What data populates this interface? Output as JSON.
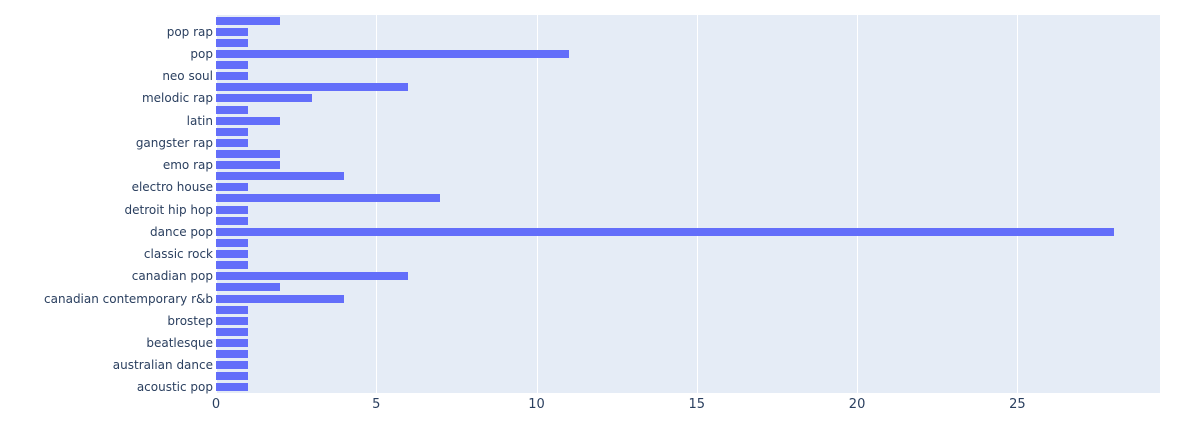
{
  "chart_data": {
    "type": "bar",
    "orientation": "horizontal",
    "title": "",
    "xlabel": "",
    "ylabel": "",
    "legend": false,
    "grid": true,
    "x_ticks": [
      0,
      5,
      10,
      15,
      20,
      25
    ],
    "x_range": [
      0,
      29.45
    ],
    "note": "34 horizontal bars; y tick labels shown only for every second category",
    "rows_top_to_bottom": [
      {
        "label": "",
        "value": 2
      },
      {
        "label": "pop rap",
        "value": 1
      },
      {
        "label": "",
        "value": 1
      },
      {
        "label": "pop",
        "value": 11
      },
      {
        "label": "",
        "value": 1
      },
      {
        "label": "neo soul",
        "value": 1
      },
      {
        "label": "",
        "value": 6
      },
      {
        "label": "melodic rap",
        "value": 3
      },
      {
        "label": "",
        "value": 1
      },
      {
        "label": "latin",
        "value": 2
      },
      {
        "label": "",
        "value": 1
      },
      {
        "label": "gangster rap",
        "value": 1
      },
      {
        "label": "",
        "value": 2
      },
      {
        "label": "emo rap",
        "value": 2
      },
      {
        "label": "",
        "value": 4
      },
      {
        "label": "electro house",
        "value": 1
      },
      {
        "label": "",
        "value": 7
      },
      {
        "label": "detroit hip hop",
        "value": 1
      },
      {
        "label": "",
        "value": 1
      },
      {
        "label": "dance pop",
        "value": 28
      },
      {
        "label": "",
        "value": 1
      },
      {
        "label": "classic rock",
        "value": 1
      },
      {
        "label": "",
        "value": 1
      },
      {
        "label": "canadian pop",
        "value": 6
      },
      {
        "label": "",
        "value": 2
      },
      {
        "label": "canadian contemporary r&b",
        "value": 4
      },
      {
        "label": "",
        "value": 1
      },
      {
        "label": "brostep",
        "value": 1
      },
      {
        "label": "",
        "value": 1
      },
      {
        "label": "beatlesque",
        "value": 1
      },
      {
        "label": "",
        "value": 1
      },
      {
        "label": "australian dance",
        "value": 1
      },
      {
        "label": "",
        "value": 1
      },
      {
        "label": "acoustic pop",
        "value": 1
      }
    ],
    "colors": {
      "bar": "#636efa",
      "plot_background": "#e5ecf6",
      "gridline": "#ffffff",
      "text": "#2a3f5f",
      "page_background": "#ffffff"
    }
  }
}
